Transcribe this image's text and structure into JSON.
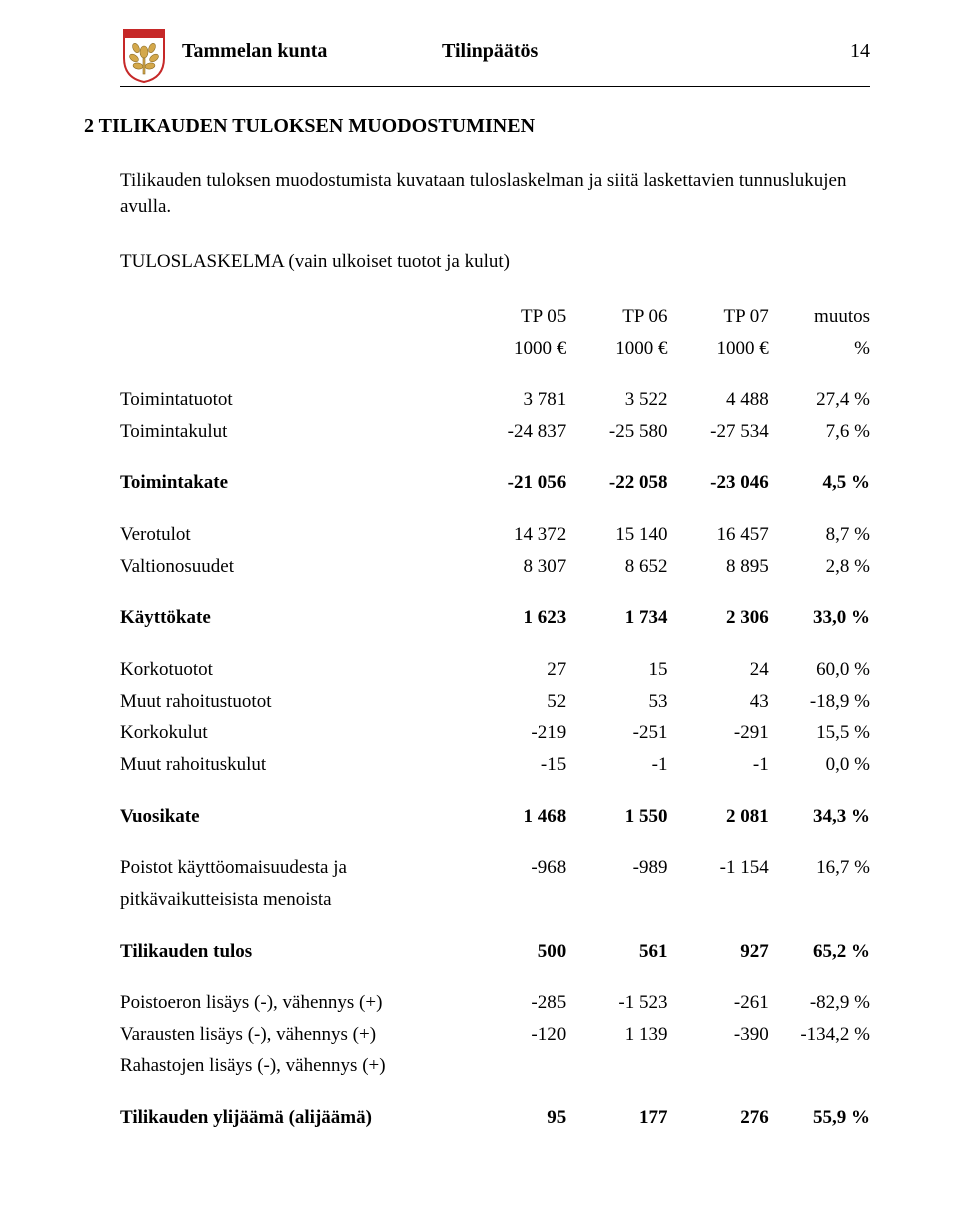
{
  "header": {
    "org": "Tammelan kunta",
    "doc": "Tilinpäätös",
    "page": "14"
  },
  "crest": {
    "shield_fill": "#ffffff",
    "shield_stroke": "#c62828",
    "leaf_fill": "#d4a84b",
    "leaf_stroke": "#8a6b25",
    "ribbon_fill": "#c62828"
  },
  "section_title": "2  TILIKAUDEN TULOKSEN MUODOSTUMINEN",
  "intro": "Tilikauden tuloksen muodostumista kuvataan tuloslaskelman ja siitä laskettavien tunnuslukujen avulla.",
  "subhead": "TULOSLASKELMA (vain ulkoiset tuotot ja kulut)",
  "table": {
    "head1": [
      "",
      "TP 05",
      "TP 06",
      "TP 07",
      "muutos"
    ],
    "head2": [
      "",
      "1000 €",
      "1000 €",
      "1000 €",
      "%"
    ],
    "rows": [
      {
        "label": "Toimintatuotot",
        "c": [
          "3 781",
          "3 522",
          "4 488",
          "27,4 %"
        ],
        "bold": false
      },
      {
        "label": "Toimintakulut",
        "c": [
          "-24 837",
          "-25 580",
          "-27 534",
          "7,6 %"
        ],
        "bold": false
      }
    ],
    "toimintakate": {
      "label": "Toimintakate",
      "c": [
        "-21 056",
        "-22 058",
        "-23 046",
        "4,5 %"
      ]
    },
    "group2": [
      {
        "label": "Verotulot",
        "c": [
          "14 372",
          "15 140",
          "16 457",
          "8,7 %"
        ]
      },
      {
        "label": "Valtionosuudet",
        "c": [
          "8 307",
          "8 652",
          "8 895",
          "2,8 %"
        ]
      }
    ],
    "kayttokate": {
      "label": "Käyttökate",
      "c": [
        "1 623",
        "1 734",
        "2 306",
        "33,0 %"
      ]
    },
    "group3": [
      {
        "label": "Korkotuotot",
        "c": [
          "27",
          "15",
          "24",
          "60,0 %"
        ]
      },
      {
        "label": "Muut rahoitustuotot",
        "c": [
          "52",
          "53",
          "43",
          "-18,9 %"
        ]
      },
      {
        "label": "Korkokulut",
        "c": [
          "-219",
          "-251",
          "-291",
          "15,5 %"
        ]
      },
      {
        "label": "Muut rahoituskulut",
        "c": [
          "-15",
          "-1",
          "-1",
          "0,0 %"
        ]
      }
    ],
    "vuosikate": {
      "label": "Vuosikate",
      "c": [
        "1 468",
        "1 550",
        "2 081",
        "34,3 %"
      ]
    },
    "poistot": {
      "label1": "Poistot käyttöomaisuudesta ja",
      "label2": "pitkävaikutteisista menoista",
      "c": [
        "-968",
        "-989",
        "-1 154",
        "16,7 %"
      ]
    },
    "tilikauden_tulos": {
      "label": "Tilikauden tulos",
      "c": [
        "500",
        "561",
        "927",
        "65,2 %"
      ]
    },
    "group4": [
      {
        "label": "Poistoeron lisäys (-), vähennys (+)",
        "c": [
          "-285",
          "-1 523",
          "-261",
          "-82,9 %"
        ]
      },
      {
        "label": "Varausten lisäys (-), vähennys (+)",
        "c": [
          "-120",
          "1 139",
          "-390",
          "-134,2 %"
        ]
      },
      {
        "label": "Rahastojen lisäys (-), vähennys (+)",
        "c": [
          "",
          "",
          "",
          ""
        ]
      }
    ],
    "ylijaama": {
      "label": "Tilikauden ylijäämä (alijäämä)",
      "c": [
        "95",
        "177",
        "276",
        "55,9 %"
      ]
    }
  }
}
